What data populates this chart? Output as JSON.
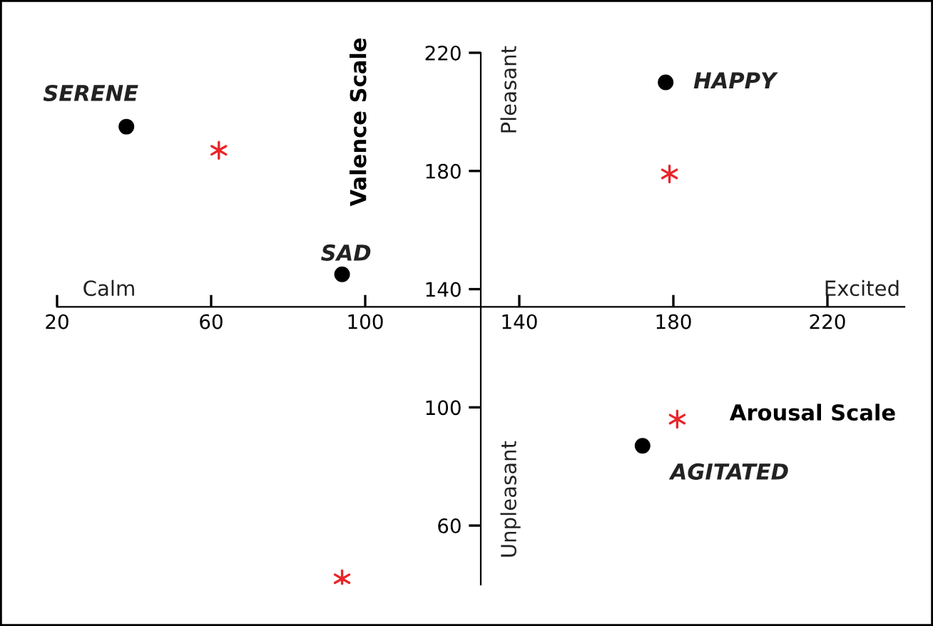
{
  "chart_data": {
    "type": "scatter",
    "xlabel": "Arousal Scale",
    "ylabel": "Valence Scale",
    "series": [
      {
        "color": "#000000",
        "marker": "circle",
        "x": [
          38,
          94,
          178,
          172
        ],
        "values": [
          195,
          145,
          210,
          87
        ]
      },
      {
        "color": "#e8262a",
        "marker": "cross",
        "x": [
          62,
          179,
          181,
          94
        ],
        "values": [
          187,
          179,
          96,
          42
        ]
      }
    ],
    "annotations": [
      {
        "text": "SERENE",
        "x": 38,
        "y": 195
      },
      {
        "text": "SAD",
        "x": 94,
        "y": 145
      },
      {
        "text": "HAPPY",
        "x": 178,
        "y": 210
      },
      {
        "text": "AGITATED",
        "x": 172,
        "y": 87
      },
      "Calm",
      "Excited",
      "Pleasant",
      "Unpleasant"
    ],
    "xlim": [
      20,
      240
    ],
    "ylim": [
      40,
      220
    ],
    "xticks": [
      20,
      60,
      100,
      140,
      180,
      220
    ],
    "yticks": [
      60,
      100,
      140,
      180,
      220
    ],
    "grid": false
  }
}
